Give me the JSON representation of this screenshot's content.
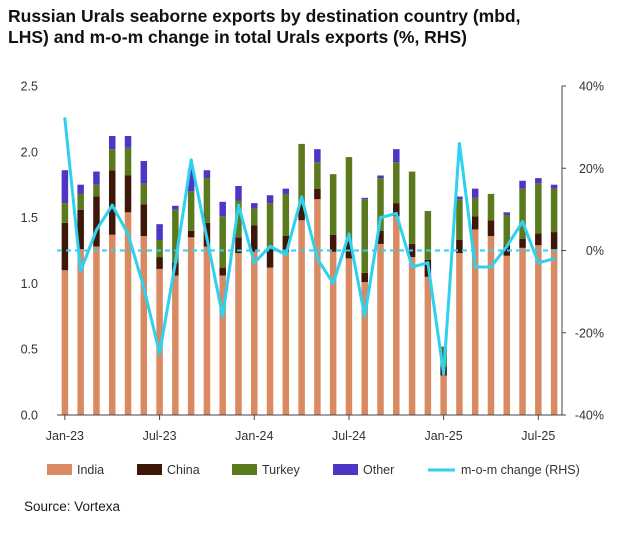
{
  "title_lines": [
    "Russian Urals seaborne exports by destination country (mbd,",
    "LHS) and m-o-m change in total Urals exports (%, RHS)"
  ],
  "source": "Source: Vortexa",
  "chart_data": {
    "type": "bar",
    "stacked": true,
    "secondary_type": "line",
    "categories": [
      "Jan-23",
      "Feb-23",
      "Mar-23",
      "Apr-23",
      "May-23",
      "Jun-23",
      "Jul-23",
      "Aug-23",
      "Sep-23",
      "Oct-23",
      "Nov-23",
      "Dec-23",
      "Jan-24",
      "Feb-24",
      "Mar-24",
      "Apr-24",
      "May-24",
      "Jun-24",
      "Jul-24",
      "Aug-24",
      "Sep-24",
      "Oct-24",
      "Nov-24",
      "Dec-24",
      "Jan-25",
      "Feb-25",
      "Mar-25",
      "Apr-25",
      "May-25",
      "Jun-25",
      "Jul-25",
      "Aug-25"
    ],
    "x_tick_labels": [
      "Jan-23",
      "Jul-23",
      "Jan-24",
      "Jul-24",
      "Jan-25",
      "Jul-25"
    ],
    "series": [
      {
        "name": "India",
        "color": "#D98A63",
        "values": [
          1.1,
          1.26,
          1.28,
          1.37,
          1.54,
          1.36,
          1.11,
          1.06,
          1.35,
          1.28,
          1.06,
          1.23,
          1.24,
          1.12,
          1.24,
          1.48,
          1.64,
          1.24,
          1.19,
          1.01,
          1.3,
          1.51,
          1.2,
          1.05,
          0.3,
          1.23,
          1.41,
          1.36,
          1.21,
          1.27,
          1.29,
          1.26
        ]
      },
      {
        "name": "China",
        "color": "#3E1708",
        "values": [
          0.36,
          0.3,
          0.38,
          0.49,
          0.28,
          0.24,
          0.09,
          0.1,
          0.05,
          0.18,
          0.06,
          0.12,
          0.2,
          0.14,
          0.12,
          0.12,
          0.08,
          0.13,
          0.13,
          0.07,
          0.1,
          0.1,
          0.1,
          0.13,
          0.07,
          0.1,
          0.1,
          0.12,
          0.08,
          0.07,
          0.09,
          0.13
        ]
      },
      {
        "name": "Turkey",
        "color": "#5B7A1E",
        "values": [
          0.15,
          0.12,
          0.09,
          0.16,
          0.21,
          0.16,
          0.13,
          0.4,
          0.3,
          0.34,
          0.39,
          0.28,
          0.13,
          0.35,
          0.32,
          0.46,
          0.2,
          0.46,
          0.64,
          0.56,
          0.4,
          0.31,
          0.55,
          0.37,
          0.15,
          0.31,
          0.14,
          0.2,
          0.23,
          0.38,
          0.38,
          0.33
        ]
      },
      {
        "name": "Other",
        "color": "#4F35C4",
        "values": [
          0.25,
          0.07,
          0.1,
          0.1,
          0.09,
          0.17,
          0.12,
          0.03,
          0.17,
          0.06,
          0.11,
          0.11,
          0.04,
          0.06,
          0.04,
          0.0,
          0.1,
          0.0,
          0.0,
          0.01,
          0.02,
          0.1,
          0.0,
          0.0,
          0.0,
          0.02,
          0.07,
          0.0,
          0.02,
          0.06,
          0.04,
          0.03
        ]
      }
    ],
    "line_series": {
      "name": "m-o-m change (RHS)",
      "color": "#2ED1EE",
      "axis": "right",
      "values": [
        32,
        -5,
        5,
        11,
        4,
        -9,
        -25,
        -3,
        22,
        3,
        -16,
        11,
        -3,
        1,
        -1,
        13,
        -2,
        -8,
        4,
        -16,
        8,
        9,
        -4,
        -3,
        -30,
        26,
        -4,
        -4,
        1,
        7,
        -3,
        -2
      ]
    },
    "ylim_left": [
      0,
      2.5
    ],
    "yticks_left": [
      "0.0",
      "0.5",
      "1.0",
      "1.5",
      "2.0",
      "2.5"
    ],
    "ylim_right": [
      -40,
      40
    ],
    "yticks_right": [
      "-40%",
      "-20%",
      "0%",
      "20%",
      "40%"
    ],
    "zero_line_right": true,
    "legend": [
      "India",
      "China",
      "Turkey",
      "Other",
      "m-o-m change (RHS)"
    ],
    "legend_position": "bottom"
  },
  "colors": {
    "zero_line": "#2ED1EE",
    "axis": "#444444"
  }
}
